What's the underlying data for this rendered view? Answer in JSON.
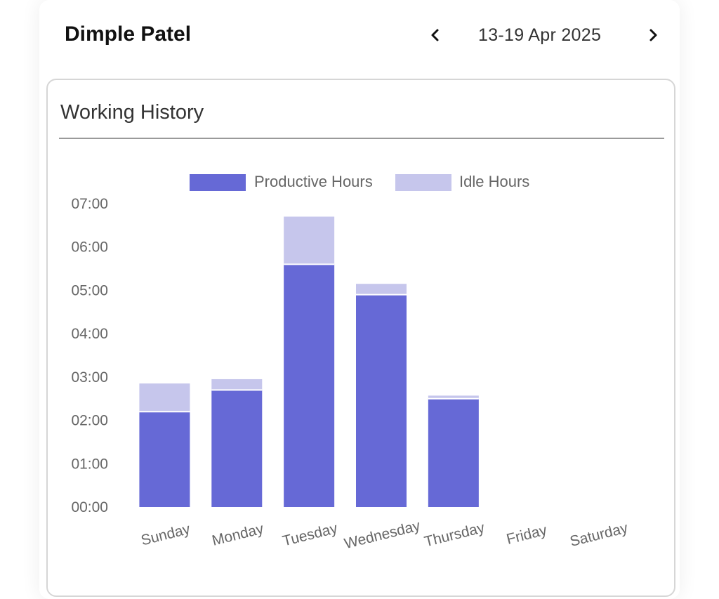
{
  "header": {
    "user_name": "Dimple Patel",
    "week_range": "13-19 Apr 2025",
    "prev_icon": "chevron-left-icon",
    "next_icon": "chevron-right-icon"
  },
  "card": {
    "title": "Working History"
  },
  "chart_data": {
    "type": "bar",
    "stacked": true,
    "categories": [
      "Sunday",
      "Monday",
      "Tuesday",
      "Wednesday",
      "Thursday",
      "Friday",
      "Saturday"
    ],
    "series": [
      {
        "name": "Productive Hours",
        "color": "#6669d6",
        "values": [
          2.2,
          2.7,
          5.6,
          4.9,
          2.5,
          0,
          0
        ]
      },
      {
        "name": "Idle Hours",
        "color": "#c6c6ec",
        "values": [
          0.65,
          0.25,
          1.1,
          0.25,
          0.07,
          0,
          0
        ]
      }
    ],
    "y_ticks": [
      "00:00",
      "01:00",
      "02:00",
      "03:00",
      "04:00",
      "05:00",
      "06:00",
      "07:00"
    ],
    "ylim": [
      0,
      7
    ],
    "legend_position": "top",
    "grid": false
  }
}
